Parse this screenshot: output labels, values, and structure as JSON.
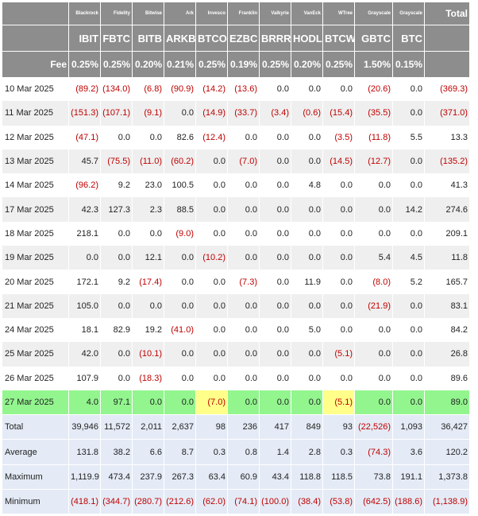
{
  "issuers": [
    "Blackrock",
    "Fidelity",
    "Bitwise",
    "Ark",
    "Invesco",
    "Franklin",
    "Valkyrie",
    "VanEck",
    "WTree",
    "Grayscale",
    "Grayscale"
  ],
  "tickers": [
    "IBIT",
    "FBTC",
    "BITB",
    "ARKB",
    "BTCO",
    "EZBC",
    "BRRR",
    "HODL",
    "BTCW",
    "GBTC",
    "BTC"
  ],
  "total_label": "Total",
  "fee_label": "Fee",
  "fees": [
    "0.25%",
    "0.25%",
    "0.20%",
    "0.21%",
    "0.25%",
    "0.19%",
    "0.25%",
    "0.20%",
    "0.25%",
    "1.50%",
    "0.15%"
  ],
  "days": [
    {
      "date": "10 Mar 2025",
      "values": [
        "(89.2)",
        "(134.0)",
        "(6.8)",
        "(90.9)",
        "(14.2)",
        "(13.6)",
        "0.0",
        "0.0",
        "0.0",
        "(20.6)",
        "0.0"
      ],
      "total": "(369.3)"
    },
    {
      "date": "11 Mar 2025",
      "values": [
        "(151.3)",
        "(107.1)",
        "(9.1)",
        "0.0",
        "(14.9)",
        "(33.7)",
        "(3.4)",
        "(0.6)",
        "(15.4)",
        "(35.5)",
        "0.0"
      ],
      "total": "(371.0)"
    },
    {
      "date": "12 Mar 2025",
      "values": [
        "(47.1)",
        "0.0",
        "0.0",
        "82.6",
        "(12.4)",
        "0.0",
        "0.0",
        "0.0",
        "(3.5)",
        "(11.8)",
        "5.5"
      ],
      "total": "13.3"
    },
    {
      "date": "13 Mar 2025",
      "values": [
        "45.7",
        "(75.5)",
        "(11.0)",
        "(60.2)",
        "0.0",
        "(7.0)",
        "0.0",
        "0.0",
        "(14.5)",
        "(12.7)",
        "0.0"
      ],
      "total": "(135.2)"
    },
    {
      "date": "14 Mar 2025",
      "values": [
        "(96.2)",
        "9.2",
        "23.0",
        "100.5",
        "0.0",
        "0.0",
        "0.0",
        "4.8",
        "0.0",
        "0.0",
        "0.0"
      ],
      "total": "41.3"
    },
    {
      "date": "17 Mar 2025",
      "values": [
        "42.3",
        "127.3",
        "2.3",
        "88.5",
        "0.0",
        "0.0",
        "0.0",
        "0.0",
        "0.0",
        "0.0",
        "14.2"
      ],
      "total": "274.6"
    },
    {
      "date": "18 Mar 2025",
      "values": [
        "218.1",
        "0.0",
        "0.0",
        "(9.0)",
        "0.0",
        "0.0",
        "0.0",
        "0.0",
        "0.0",
        "0.0",
        "0.0"
      ],
      "total": "209.1"
    },
    {
      "date": "19 Mar 2025",
      "values": [
        "0.0",
        "0.0",
        "12.1",
        "0.0",
        "(10.2)",
        "0.0",
        "0.0",
        "0.0",
        "0.0",
        "5.4",
        "4.5"
      ],
      "total": "11.8"
    },
    {
      "date": "20 Mar 2025",
      "values": [
        "172.1",
        "9.2",
        "(17.4)",
        "0.0",
        "0.0",
        "(7.3)",
        "0.0",
        "11.9",
        "0.0",
        "(8.0)",
        "5.2"
      ],
      "total": "165.7"
    },
    {
      "date": "21 Mar 2025",
      "values": [
        "105.0",
        "0.0",
        "0.0",
        "0.0",
        "0.0",
        "0.0",
        "0.0",
        "0.0",
        "0.0",
        "(21.9)",
        "0.0"
      ],
      "total": "83.1"
    },
    {
      "date": "24 Mar 2025",
      "values": [
        "18.1",
        "82.9",
        "19.2",
        "(41.0)",
        "0.0",
        "0.0",
        "0.0",
        "5.0",
        "0.0",
        "0.0",
        "0.0"
      ],
      "total": "84.2"
    },
    {
      "date": "25 Mar 2025",
      "values": [
        "42.0",
        "0.0",
        "(10.1)",
        "0.0",
        "0.0",
        "0.0",
        "0.0",
        "0.0",
        "(5.1)",
        "0.0",
        "0.0"
      ],
      "total": "26.8"
    },
    {
      "date": "26 Mar 2025",
      "values": [
        "107.9",
        "0.0",
        "(18.3)",
        "0.0",
        "0.0",
        "0.0",
        "0.0",
        "0.0",
        "0.0",
        "0.0",
        "0.0"
      ],
      "total": "89.6"
    },
    {
      "date": "27 Mar 2025",
      "values": [
        "4.0",
        "97.1",
        "0.0",
        "0.0",
        "(7.0)",
        "0.0",
        "0.0",
        "0.0",
        "(5.1)",
        "0.0",
        "0.0"
      ],
      "total": "89.0",
      "highlight": true
    }
  ],
  "summary": [
    {
      "label": "Total",
      "values": [
        "39,946",
        "11,572",
        "2,011",
        "2,637",
        "98",
        "236",
        "417",
        "849",
        "93",
        "(22,526)",
        "1,093"
      ],
      "total": "36,427"
    },
    {
      "label": "Average",
      "values": [
        "131.8",
        "38.2",
        "6.6",
        "8.7",
        "0.3",
        "0.8",
        "1.4",
        "2.8",
        "0.3",
        "(74.3)",
        "3.6"
      ],
      "total": "120.2"
    },
    {
      "label": "Maximum",
      "values": [
        "1,119.9",
        "473.4",
        "237.9",
        "267.3",
        "63.4",
        "60.9",
        "43.4",
        "118.8",
        "118.5",
        "73.8",
        "191.1"
      ],
      "total": "1,373.8"
    },
    {
      "label": "Minimum",
      "values": [
        "(418.1)",
        "(344.7)",
        "(280.7)",
        "(212.6)",
        "(62.0)",
        "(74.1)",
        "(100.0)",
        "(38.4)",
        "(53.8)",
        "(642.5)",
        "(188.6)"
      ],
      "total": "(1,138.9)"
    }
  ],
  "colors": {
    "header_bg": "#8d8d8d",
    "negative": "#c00000",
    "highlight_row": "#92f58e",
    "highlight_neg": "#ffff8a",
    "summary_bg": "#e4ebf6"
  }
}
